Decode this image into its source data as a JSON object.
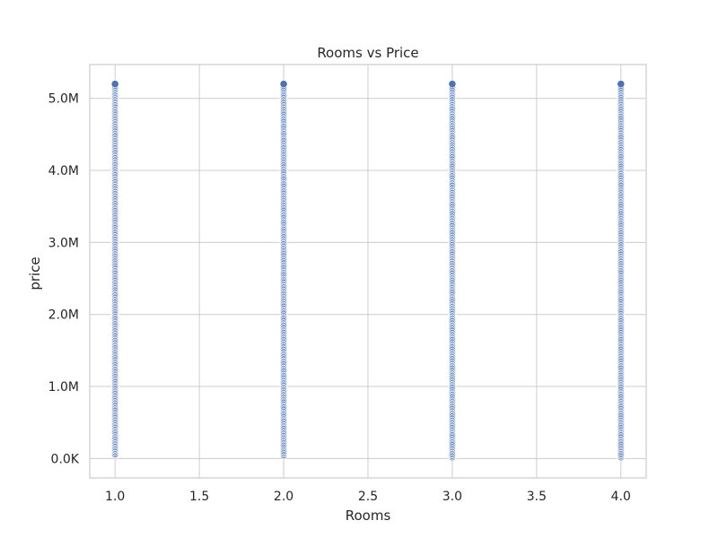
{
  "chart_data": {
    "type": "scatter",
    "title": "Rooms vs Price",
    "xlabel": "Rooms",
    "ylabel": "price",
    "xlim": [
      0.85,
      4.15
    ],
    "ylim": [
      -270000,
      5470000
    ],
    "xticks": [
      1.0,
      1.5,
      2.0,
      2.5,
      3.0,
      3.5,
      4.0
    ],
    "xtick_labels": [
      "1.0",
      "1.5",
      "2.0",
      "2.5",
      "3.0",
      "3.5",
      "4.0"
    ],
    "yticks": [
      0,
      1000000,
      2000000,
      3000000,
      4000000,
      5000000
    ],
    "ytick_labels": [
      "0.0K",
      "1.0M",
      "2.0M",
      "3.0M",
      "4.0M",
      "5.0M"
    ],
    "grid": true,
    "marker_color": "#4c72b0",
    "marker_edge_color": "#ffffff",
    "axis_edge_color": "#cccccc",
    "grid_color": "#cccccc",
    "points_per_category": 260,
    "series": [
      {
        "x": 1.0,
        "ymin": 60000,
        "ymax": 5200000
      },
      {
        "x": 2.0,
        "ymin": 50000,
        "ymax": 5200000
      },
      {
        "x": 3.0,
        "ymin": 20000,
        "ymax": 5200000
      },
      {
        "x": 4.0,
        "ymin": 20000,
        "ymax": 5200000
      }
    ]
  }
}
